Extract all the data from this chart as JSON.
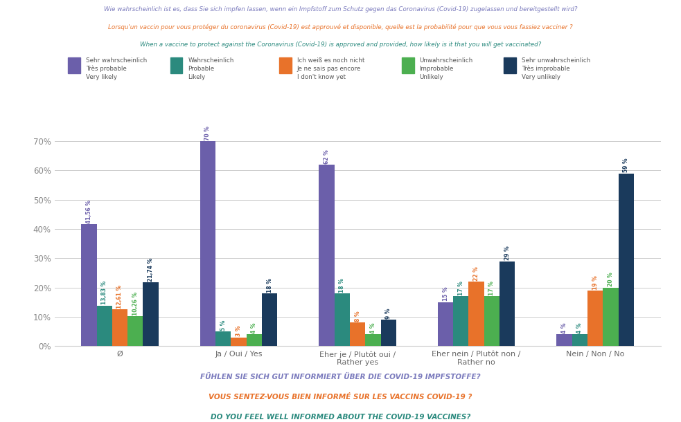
{
  "title_lines": [
    "Wie wahrscheinlich ist es, dass Sie sich impfen lassen, wenn ein Impfstoff zum Schutz gegen das Coronavirus (Covid-19) zugelassen und bereitgestellt wird?",
    "Lorsqu'un vaccin pour vous protéger du coronavirus (Covid-19) est approuvé et disponible, quelle est la probabilité pour que vous vous fassiez vacciner ?",
    "When a vaccine to protect against the Coronavirus (Covid-19) is approved and provided, how likely is it that you will get vaccinated?"
  ],
  "xlabel_bottom": [
    "FÜHLEN SIE SICH GUT INFORMIERT ÜBER DIE COVID-19 IMPFSTOFFE?",
    "VOUS SENTEZ-VOUS BIEN INFORMÉ SUR LES VACCINS COVID-19 ?",
    "DO YOU FEEL WELL INFORMED ABOUT THE COVID-19 VACCINES?"
  ],
  "categories": [
    "Ø",
    "Ja / Oui / Yes",
    "Eher je / Plutôt oui /\nRather yes",
    "Eher nein / Plutôt non /\nRather no",
    "Nein / Non / No"
  ],
  "series": [
    {
      "label_de": "Sehr wahrscheinlich",
      "label_fr": "Très probable",
      "label_en": "Very likely",
      "color": "#6b5faa",
      "values": [
        41.56,
        70,
        62,
        15,
        4
      ]
    },
    {
      "label_de": "Wahrscheinlich",
      "label_fr": "Probable",
      "label_en": "Likely",
      "color": "#2b8a7e",
      "values": [
        13.83,
        5,
        18,
        17,
        4
      ]
    },
    {
      "label_de": "Ich weiß es noch nicht",
      "label_fr": "Je ne sais pas encore",
      "label_en": "I don't know yet",
      "color": "#e8722a",
      "values": [
        12.61,
        3,
        8,
        22,
        19
      ]
    },
    {
      "label_de": "Unwahrscheinlich",
      "label_fr": "Improbable",
      "label_en": "Unlikely",
      "color": "#4caf50",
      "values": [
        10.26,
        4,
        4,
        17,
        20
      ]
    },
    {
      "label_de": "Sehr unwahrscheinlich",
      "label_fr": "Très improbable",
      "label_en": "Very unlikely",
      "color": "#1a3a5c",
      "values": [
        21.74,
        18,
        9,
        29,
        59
      ]
    }
  ],
  "value_labels": [
    [
      "41,56 %",
      "70 %",
      "62 %",
      "15 %",
      "4 %"
    ],
    [
      "13,83 %",
      "5 %",
      "18 %",
      "17 %",
      "4 %"
    ],
    [
      "12,61 %",
      "3 %",
      "8 %",
      "22 %",
      "19 %"
    ],
    [
      "10,26 %",
      "4 %",
      "4 %",
      "17 %",
      "20 %"
    ],
    [
      "21,74 %",
      "18 %",
      "9 %",
      "29 %",
      "59 %"
    ]
  ],
  "ylim": [
    0,
    75
  ],
  "yticks": [
    0,
    10,
    20,
    30,
    40,
    50,
    60,
    70
  ],
  "ytick_labels": [
    "0%",
    "10%",
    "20%",
    "30%",
    "40%",
    "50%",
    "60%",
    "70%"
  ],
  "background_color": "#ffffff",
  "title_color_de": "#7b7bbd",
  "title_color_fr": "#e8722a",
  "title_color_en": "#2b8a7e",
  "bottom_label_color_de": "#7b7bbd",
  "bottom_label_color_fr": "#e8722a",
  "bottom_label_color_en": "#2b8a7e"
}
